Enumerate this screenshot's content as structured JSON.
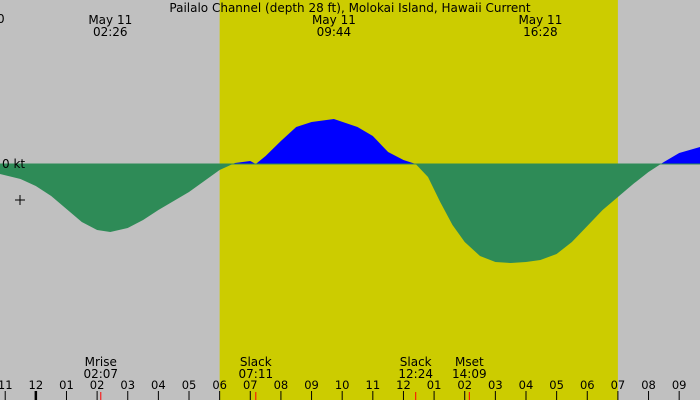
{
  "chart_data": {
    "type": "area",
    "title": "Pailalo Channel (depth 28 ft), Molokai Island, Hawaii Current",
    "corner_label": "0",
    "ylabel": "0 kt",
    "x_range_hours": [
      -1.17,
      21.68
    ],
    "daylight_hours": [
      6.0,
      19.0
    ],
    "y_range": [
      -1.0,
      1.0
    ],
    "colors": {
      "night": "#c0c0c0",
      "day": "#cccc00",
      "ebb": "#2e8b57",
      "flood": "#0000ff",
      "zero_line": "#2e8b57",
      "moon_tick": "#ff0000"
    },
    "series": [
      {
        "x": [
          -1.17,
          -0.5,
          0.0,
          0.5,
          1.0,
          1.5,
          2.0,
          2.43,
          3.0,
          3.5,
          4.0,
          4.5,
          5.0,
          5.5,
          6.0,
          6.5,
          7.0,
          7.18,
          7.5,
          8.0,
          8.5,
          9.0,
          9.73,
          10.5,
          11.0,
          11.5,
          12.0,
          12.4,
          12.8,
          13.2,
          13.6,
          14.0,
          14.5,
          15.0,
          15.5,
          16.0,
          16.47,
          17.0,
          17.5,
          18.0,
          18.5,
          19.0,
          19.5,
          20.0,
          20.5,
          21.0,
          21.68
        ],
        "y": [
          -0.1,
          -0.15,
          -0.22,
          -0.32,
          -0.45,
          -0.58,
          -0.66,
          -0.68,
          -0.64,
          -0.56,
          -0.46,
          -0.37,
          -0.28,
          -0.17,
          -0.06,
          0.01,
          0.03,
          0.0,
          0.08,
          0.23,
          0.37,
          0.42,
          0.45,
          0.37,
          0.28,
          0.12,
          0.04,
          0.0,
          -0.13,
          -0.38,
          -0.61,
          -0.78,
          -0.92,
          -0.98,
          -0.99,
          -0.98,
          -0.96,
          -0.9,
          -0.78,
          -0.62,
          -0.46,
          -0.33,
          -0.2,
          -0.08,
          0.02,
          0.11,
          0.17
        ]
      }
    ],
    "top_labels": [
      {
        "x": 2.43,
        "date": "May 11",
        "time": "02:26"
      },
      {
        "x": 9.73,
        "date": "May 11",
        "time": "09:44"
      },
      {
        "x": 16.47,
        "date": "May 11",
        "time": "16:28"
      }
    ],
    "bottom_events": [
      {
        "x": 2.12,
        "name": "Mrise",
        "time": "02:07",
        "tick": true
      },
      {
        "x": 7.18,
        "name": "Slack",
        "time": "07:11",
        "tick": true
      },
      {
        "x": 12.4,
        "name": "Slack",
        "time": "12:24",
        "tick": true
      },
      {
        "x": 14.15,
        "name": "Mset",
        "time": "14:09",
        "tick": true
      }
    ],
    "x_ticks": [
      {
        "x": -1.0,
        "label": "11"
      },
      {
        "x": 0.0,
        "label": "12"
      },
      {
        "x": 1.0,
        "label": "01"
      },
      {
        "x": 2.0,
        "label": "02"
      },
      {
        "x": 3.0,
        "label": "03"
      },
      {
        "x": 4.0,
        "label": "04"
      },
      {
        "x": 5.0,
        "label": "05"
      },
      {
        "x": 6.0,
        "label": "06"
      },
      {
        "x": 7.0,
        "label": "07"
      },
      {
        "x": 8.0,
        "label": "08"
      },
      {
        "x": 9.0,
        "label": "09"
      },
      {
        "x": 10.0,
        "label": "10"
      },
      {
        "x": 11.0,
        "label": "11"
      },
      {
        "x": 12.0,
        "label": "12"
      },
      {
        "x": 13.0,
        "label": "01"
      },
      {
        "x": 14.0,
        "label": "02"
      },
      {
        "x": 15.0,
        "label": "03"
      },
      {
        "x": 16.0,
        "label": "04"
      },
      {
        "x": 17.0,
        "label": "05"
      },
      {
        "x": 18.0,
        "label": "06"
      },
      {
        "x": 19.0,
        "label": "07"
      },
      {
        "x": 20.0,
        "label": "08"
      },
      {
        "x": 21.0,
        "label": "09"
      }
    ],
    "grid": false,
    "legend": "none"
  }
}
